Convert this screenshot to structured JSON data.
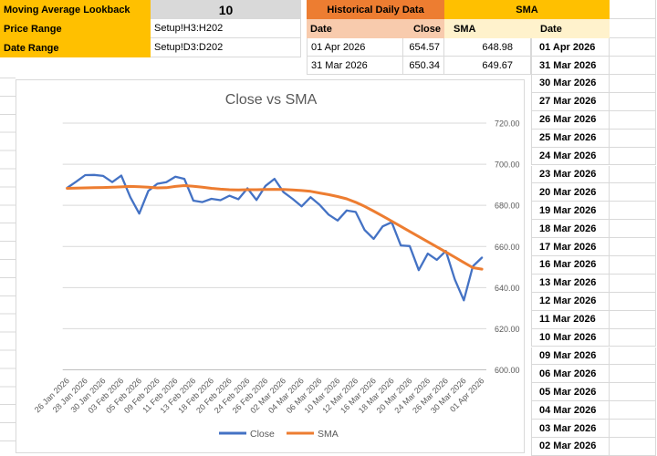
{
  "config": {
    "rows": [
      {
        "label": "Moving Average Lookback",
        "value": "10"
      },
      {
        "label": "Price Range",
        "value": "Setup!H3:H202"
      },
      {
        "label": "Date Range",
        "value": "Setup!D3:D202"
      }
    ]
  },
  "tables": {
    "historical": {
      "title": "Historical Daily Data",
      "columns": [
        "Date",
        "Close"
      ],
      "rows": [
        [
          "01 Apr 2026",
          "654.57"
        ],
        [
          "31 Mar 2026",
          "650.34"
        ]
      ]
    },
    "sma": {
      "title": "SMA",
      "columns": [
        "SMA",
        "Date"
      ],
      "rows": [
        [
          "648.98",
          "01 Apr 2026"
        ],
        [
          "649.67",
          "31 Mar 2026"
        ]
      ],
      "date_list": [
        "30 Mar 2026",
        "27 Mar 2026",
        "26 Mar 2026",
        "25 Mar 2026",
        "24 Mar 2026",
        "23 Mar 2026",
        "20 Mar 2026",
        "19 Mar 2026",
        "18 Mar 2026",
        "17 Mar 2026",
        "16 Mar 2026",
        "13 Mar 2026",
        "12 Mar 2026",
        "11 Mar 2026",
        "10 Mar 2026",
        "09 Mar 2026",
        "06 Mar 2026",
        "05 Mar 2026",
        "04 Mar 2026",
        "03 Mar 2026",
        "02 Mar 2026"
      ]
    }
  },
  "chart_data": {
    "type": "line",
    "title": "Close vs SMA",
    "x": [
      "26 Jan 2026",
      "27 Jan 2026",
      "28 Jan 2026",
      "29 Jan 2026",
      "30 Jan 2026",
      "02 Feb 2026",
      "03 Feb 2026",
      "04 Feb 2026",
      "05 Feb 2026",
      "06 Feb 2026",
      "09 Feb 2026",
      "10 Feb 2026",
      "11 Feb 2026",
      "12 Feb 2026",
      "13 Feb 2026",
      "17 Feb 2026",
      "18 Feb 2026",
      "19 Feb 2026",
      "20 Feb 2026",
      "23 Feb 2026",
      "24 Feb 2026",
      "25 Feb 2026",
      "26 Feb 2026",
      "27 Feb 2026",
      "02 Mar 2026",
      "03 Mar 2026",
      "04 Mar 2026",
      "05 Mar 2026",
      "06 Mar 2026",
      "09 Mar 2026",
      "10 Mar 2026",
      "11 Mar 2026",
      "12 Mar 2026",
      "13 Mar 2026",
      "16 Mar 2026",
      "17 Mar 2026",
      "18 Mar 2026",
      "19 Mar 2026",
      "20 Mar 2026",
      "23 Mar 2026",
      "24 Mar 2026",
      "25 Mar 2026",
      "26 Mar 2026",
      "27 Mar 2026",
      "30 Mar 2026",
      "31 Mar 2026",
      "01 Apr 2026"
    ],
    "x_tick_labels": [
      "26 Jan 2026",
      "28 Jan 2026",
      "30 Jan 2026",
      "03 Feb 2026",
      "05 Feb 2026",
      "09 Feb 2026",
      "11 Feb 2026",
      "13 Feb 2026",
      "18 Feb 2026",
      "20 Feb 2026",
      "24 Feb 2026",
      "26 Feb 2026",
      "02 Mar 2026",
      "04 Mar 2026",
      "06 Mar 2026",
      "10 Mar 2026",
      "12 Mar 2026",
      "16 Mar 2026",
      "18 Mar 2026",
      "20 Mar 2026",
      "24 Mar 2026",
      "26 Mar 2026",
      "30 Mar 2026",
      "01 Apr 2026"
    ],
    "series": [
      {
        "name": "Close",
        "color": "#4472C4",
        "values": [
          688.5,
          691.5,
          694.7,
          694.8,
          694.3,
          691.3,
          694.5,
          684.0,
          676.0,
          687.0,
          690.5,
          691.3,
          693.9,
          692.9,
          682.3,
          681.6,
          683.2,
          682.5,
          684.7,
          683.0,
          688.3,
          682.6,
          689.5,
          692.9,
          686.4,
          683.2,
          679.5,
          684.0,
          680.3,
          675.5,
          672.6,
          677.5,
          676.8,
          668.0,
          663.7,
          669.8,
          671.8,
          660.5,
          660.2,
          648.5,
          656.5,
          653.5,
          657.8,
          644.0,
          633.8,
          650.34,
          654.57
        ]
      },
      {
        "name": "SMA",
        "color": "#ED7D31",
        "values": [
          688.3,
          688.4,
          688.5,
          688.6,
          688.7,
          688.8,
          689.0,
          689.2,
          689.1,
          688.8,
          688.5,
          688.6,
          689.2,
          689.6,
          689.3,
          688.8,
          688.3,
          687.9,
          687.6,
          687.5,
          687.6,
          687.6,
          687.7,
          687.8,
          687.7,
          687.5,
          687.2,
          686.8,
          686.0,
          685.2,
          684.3,
          683.2,
          681.5,
          679.5,
          677.2,
          674.8,
          672.3,
          669.8,
          667.3,
          664.8,
          662.3,
          659.8,
          657.3,
          654.8,
          652.2,
          649.67,
          648.98
        ]
      }
    ],
    "ylim": [
      600,
      720
    ],
    "y_tick_labels": [
      "720.00",
      "700.00",
      "680.00",
      "660.00",
      "640.00",
      "620.00",
      "600.00"
    ],
    "grid": true,
    "y_axis_side": "right",
    "x_label_rotation": -45,
    "legend_position": "bottom"
  },
  "colors": {
    "gold": "#FFC000",
    "orange": "#ED7D31",
    "peach": "#F8CBAD",
    "light_yellow": "#FFF2CC",
    "gray_cell": "#D9D9D9",
    "gridline": "#D9D9D9",
    "axis_line": "#BFBFBF",
    "chart_text": "#595959",
    "close_line": "#4472C4",
    "sma_line": "#ED7D31"
  }
}
